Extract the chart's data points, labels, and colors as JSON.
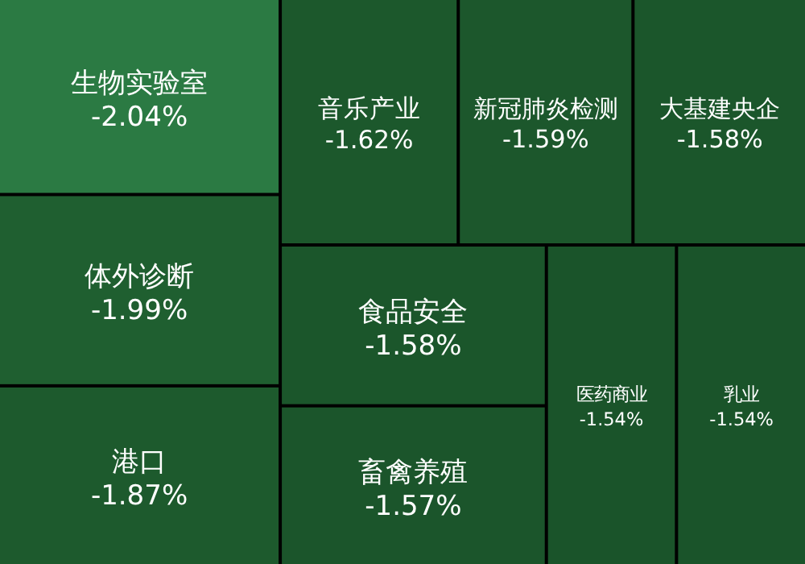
{
  "chart_data": {
    "type": "other",
    "categories": [
      "生物实验室",
      "体外诊断",
      "港口",
      "音乐产业",
      "新冠肺炎检测",
      "大基建央企",
      "食品安全",
      "畜禽养殖",
      "医药商业",
      "乳业"
    ],
    "values": [
      -2.04,
      -1.99,
      -1.87,
      -1.62,
      -1.59,
      -1.58,
      -1.58,
      -1.57,
      -1.54,
      -1.54
    ],
    "value_labels": [
      "-2.04%",
      "-1.99%",
      "-1.87%",
      "-1.62%",
      "-1.59%",
      "-1.58%",
      "-1.58%",
      "-1.57%",
      "-1.54%",
      "-1.54%"
    ],
    "colors": [
      "#2b7a43",
      "#1f5f30",
      "#1d5a2d",
      "#1c582c",
      "#1c572c",
      "#1b562b",
      "#1b562b",
      "#1b552b",
      "#1a542a",
      "#1a542a"
    ]
  }
}
